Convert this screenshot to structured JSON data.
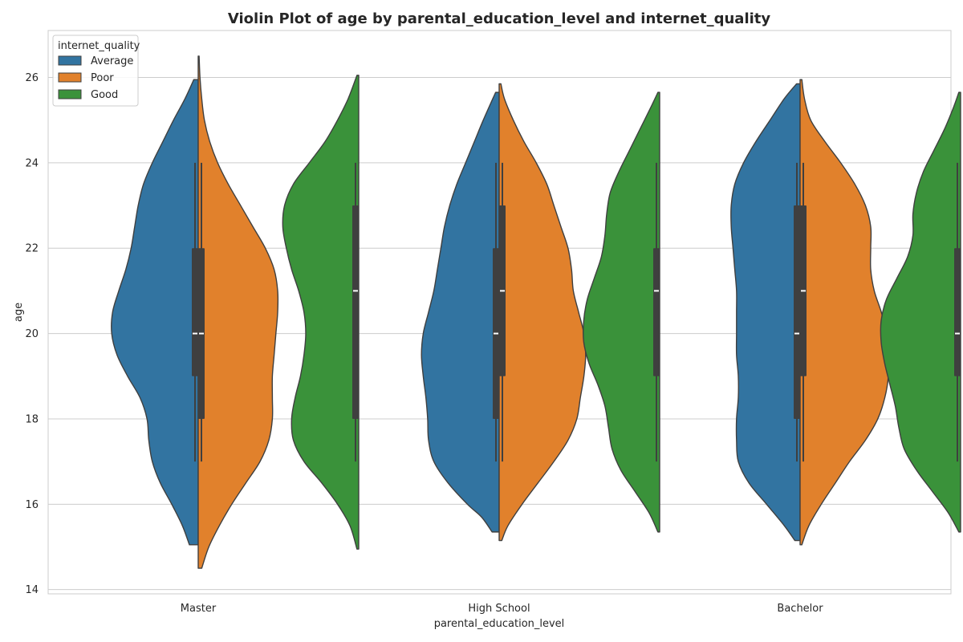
{
  "chart_data": {
    "type": "violin",
    "title": "Violin Plot of age by parental_education_level and internet_quality",
    "xlabel": "parental_education_level",
    "ylabel": "age",
    "ylim": [
      13.9,
      27.1
    ],
    "yticks": [
      14,
      16,
      18,
      20,
      22,
      24,
      26
    ],
    "grid": true,
    "legend": {
      "title": "internet_quality",
      "placement": "top-left",
      "entries": [
        {
          "name": "Average",
          "color": "#3274a1"
        },
        {
          "name": "Poor",
          "color": "#e1812c"
        },
        {
          "name": "Good",
          "color": "#3a923a"
        }
      ]
    },
    "categories": [
      "Master",
      "High School",
      "Bachelor"
    ],
    "series": [
      {
        "name": "Average",
        "color": "#3274a1",
        "side": "left",
        "violins": [
          {
            "category": "Master",
            "ymin": 15.05,
            "ymax": 25.95,
            "q1": 19,
            "median": 20,
            "q3": 22,
            "whisker_low": 17,
            "whisker_high": 24,
            "profile": [
              [
                15.05,
                0.1
              ],
              [
                15.5,
                0.18
              ],
              [
                16.0,
                0.3
              ],
              [
                16.5,
                0.43
              ],
              [
                17.0,
                0.52
              ],
              [
                17.5,
                0.56
              ],
              [
                18.0,
                0.58
              ],
              [
                18.5,
                0.66
              ],
              [
                19.0,
                0.8
              ],
              [
                19.5,
                0.92
              ],
              [
                20.0,
                0.98
              ],
              [
                20.5,
                0.97
              ],
              [
                21.0,
                0.9
              ],
              [
                21.5,
                0.82
              ],
              [
                22.0,
                0.76
              ],
              [
                22.5,
                0.72
              ],
              [
                23.0,
                0.68
              ],
              [
                23.5,
                0.62
              ],
              [
                24.0,
                0.52
              ],
              [
                24.5,
                0.4
              ],
              [
                25.0,
                0.28
              ],
              [
                25.5,
                0.15
              ],
              [
                25.95,
                0.05
              ]
            ]
          },
          {
            "category": "High School",
            "ymin": 15.35,
            "ymax": 25.65,
            "q1": 18,
            "median": 20,
            "q3": 22,
            "whisker_low": 17,
            "whisker_high": 24,
            "profile": [
              [
                15.35,
                0.08
              ],
              [
                15.7,
                0.2
              ],
              [
                16.0,
                0.36
              ],
              [
                16.5,
                0.58
              ],
              [
                17.0,
                0.74
              ],
              [
                17.5,
                0.8
              ],
              [
                18.0,
                0.81
              ],
              [
                18.5,
                0.83
              ],
              [
                19.0,
                0.86
              ],
              [
                19.5,
                0.88
              ],
              [
                20.0,
                0.86
              ],
              [
                20.5,
                0.8
              ],
              [
                21.0,
                0.74
              ],
              [
                21.5,
                0.7
              ],
              [
                22.0,
                0.66
              ],
              [
                22.5,
                0.62
              ],
              [
                23.0,
                0.56
              ],
              [
                23.5,
                0.48
              ],
              [
                24.0,
                0.38
              ],
              [
                24.5,
                0.28
              ],
              [
                25.0,
                0.18
              ],
              [
                25.65,
                0.04
              ]
            ]
          },
          {
            "category": "Bachelor",
            "ymin": 15.15,
            "ymax": 25.85,
            "q1": 18,
            "median": 20,
            "q3": 23,
            "whisker_low": 17,
            "whisker_high": 24,
            "profile": [
              [
                15.15,
                0.06
              ],
              [
                15.5,
                0.18
              ],
              [
                16.0,
                0.38
              ],
              [
                16.5,
                0.58
              ],
              [
                17.0,
                0.7
              ],
              [
                17.5,
                0.72
              ],
              [
                18.0,
                0.72
              ],
              [
                18.5,
                0.7
              ],
              [
                19.0,
                0.7
              ],
              [
                19.5,
                0.72
              ],
              [
                20.0,
                0.72
              ],
              [
                20.5,
                0.72
              ],
              [
                21.0,
                0.72
              ],
              [
                21.5,
                0.74
              ],
              [
                22.0,
                0.76
              ],
              [
                22.5,
                0.78
              ],
              [
                23.0,
                0.78
              ],
              [
                23.5,
                0.74
              ],
              [
                24.0,
                0.64
              ],
              [
                24.5,
                0.5
              ],
              [
                25.0,
                0.34
              ],
              [
                25.5,
                0.18
              ],
              [
                25.85,
                0.04
              ]
            ]
          }
        ]
      },
      {
        "name": "Poor",
        "color": "#e1812c",
        "side": "right",
        "violins": [
          {
            "category": "Master",
            "ymin": 14.5,
            "ymax": 26.5,
            "q1": 18,
            "median": 20,
            "q3": 22,
            "whisker_low": 17,
            "whisker_high": 24,
            "profile": [
              [
                14.5,
                0.04
              ],
              [
                15.0,
                0.12
              ],
              [
                15.5,
                0.24
              ],
              [
                16.0,
                0.38
              ],
              [
                16.5,
                0.54
              ],
              [
                17.0,
                0.7
              ],
              [
                17.5,
                0.8
              ],
              [
                18.0,
                0.84
              ],
              [
                18.5,
                0.84
              ],
              [
                19.0,
                0.84
              ],
              [
                19.5,
                0.86
              ],
              [
                20.0,
                0.88
              ],
              [
                20.5,
                0.9
              ],
              [
                21.0,
                0.9
              ],
              [
                21.5,
                0.86
              ],
              [
                22.0,
                0.76
              ],
              [
                22.5,
                0.62
              ],
              [
                23.0,
                0.48
              ],
              [
                23.5,
                0.34
              ],
              [
                24.0,
                0.22
              ],
              [
                24.5,
                0.13
              ],
              [
                25.0,
                0.07
              ],
              [
                25.5,
                0.04
              ],
              [
                26.0,
                0.02
              ],
              [
                26.5,
                0.01
              ]
            ]
          },
          {
            "category": "High School",
            "ymin": 15.15,
            "ymax": 25.85,
            "q1": 19,
            "median": 21,
            "q3": 23,
            "whisker_low": 17,
            "whisker_high": 24,
            "profile": [
              [
                15.15,
                0.03
              ],
              [
                15.5,
                0.1
              ],
              [
                16.0,
                0.26
              ],
              [
                16.5,
                0.44
              ],
              [
                17.0,
                0.62
              ],
              [
                17.5,
                0.78
              ],
              [
                18.0,
                0.88
              ],
              [
                18.5,
                0.92
              ],
              [
                19.0,
                0.96
              ],
              [
                19.5,
                0.98
              ],
              [
                20.0,
                0.96
              ],
              [
                20.5,
                0.9
              ],
              [
                21.0,
                0.84
              ],
              [
                21.5,
                0.82
              ],
              [
                22.0,
                0.78
              ],
              [
                22.5,
                0.7
              ],
              [
                23.0,
                0.62
              ],
              [
                23.5,
                0.54
              ],
              [
                24.0,
                0.42
              ],
              [
                24.5,
                0.28
              ],
              [
                25.0,
                0.16
              ],
              [
                25.5,
                0.06
              ],
              [
                25.85,
                0.02
              ]
            ]
          },
          {
            "category": "Bachelor",
            "ymin": 15.05,
            "ymax": 25.95,
            "q1": 19,
            "median": 21,
            "q3": 23,
            "whisker_low": 17,
            "whisker_high": 24,
            "profile": [
              [
                15.05,
                0.02
              ],
              [
                15.5,
                0.1
              ],
              [
                16.0,
                0.24
              ],
              [
                16.5,
                0.4
              ],
              [
                17.0,
                0.56
              ],
              [
                17.5,
                0.74
              ],
              [
                18.0,
                0.88
              ],
              [
                18.5,
                0.96
              ],
              [
                19.0,
                1.0
              ],
              [
                19.5,
                1.0
              ],
              [
                20.0,
                0.98
              ],
              [
                20.5,
                0.92
              ],
              [
                21.0,
                0.84
              ],
              [
                21.5,
                0.8
              ],
              [
                22.0,
                0.8
              ],
              [
                22.5,
                0.8
              ],
              [
                23.0,
                0.74
              ],
              [
                23.5,
                0.62
              ],
              [
                24.0,
                0.46
              ],
              [
                24.5,
                0.28
              ],
              [
                25.0,
                0.12
              ],
              [
                25.5,
                0.05
              ],
              [
                25.95,
                0.02
              ]
            ]
          }
        ]
      },
      {
        "name": "Good",
        "color": "#3a923a",
        "side": "left",
        "violins": [
          {
            "category": "Master",
            "ymin": 14.95,
            "ymax": 26.05,
            "q1": 18,
            "median": 21,
            "q3": 23,
            "whisker_low": 17,
            "whisker_high": 24,
            "profile": [
              [
                14.95,
                0.02
              ],
              [
                15.5,
                0.1
              ],
              [
                16.0,
                0.24
              ],
              [
                16.5,
                0.42
              ],
              [
                17.0,
                0.62
              ],
              [
                17.5,
                0.74
              ],
              [
                18.0,
                0.76
              ],
              [
                18.5,
                0.72
              ],
              [
                19.0,
                0.66
              ],
              [
                19.5,
                0.62
              ],
              [
                20.0,
                0.6
              ],
              [
                20.5,
                0.62
              ],
              [
                21.0,
                0.68
              ],
              [
                21.5,
                0.76
              ],
              [
                22.0,
                0.82
              ],
              [
                22.5,
                0.86
              ],
              [
                23.0,
                0.84
              ],
              [
                23.5,
                0.74
              ],
              [
                24.0,
                0.56
              ],
              [
                24.5,
                0.38
              ],
              [
                25.0,
                0.24
              ],
              [
                25.5,
                0.12
              ],
              [
                26.05,
                0.02
              ]
            ]
          },
          {
            "category": "High School",
            "ymin": 15.35,
            "ymax": 25.65,
            "q1": 19,
            "median": 21,
            "q3": 22,
            "whisker_low": 17,
            "whisker_high": 24,
            "profile": [
              [
                15.35,
                0.02
              ],
              [
                15.8,
                0.12
              ],
              [
                16.3,
                0.28
              ],
              [
                16.8,
                0.44
              ],
              [
                17.3,
                0.54
              ],
              [
                17.8,
                0.58
              ],
              [
                18.3,
                0.62
              ],
              [
                18.8,
                0.7
              ],
              [
                19.3,
                0.8
              ],
              [
                19.8,
                0.86
              ],
              [
                20.3,
                0.86
              ],
              [
                20.8,
                0.82
              ],
              [
                21.3,
                0.74
              ],
              [
                21.8,
                0.66
              ],
              [
                22.3,
                0.62
              ],
              [
                22.8,
                0.6
              ],
              [
                23.3,
                0.56
              ],
              [
                23.8,
                0.46
              ],
              [
                24.3,
                0.34
              ],
              [
                24.8,
                0.22
              ],
              [
                25.3,
                0.1
              ],
              [
                25.65,
                0.02
              ]
            ]
          },
          {
            "category": "Bachelor",
            "ymin": 15.35,
            "ymax": 25.65,
            "q1": 19,
            "median": 20,
            "q3": 22,
            "whisker_low": 17,
            "whisker_high": 24,
            "profile": [
              [
                15.35,
                0.02
              ],
              [
                15.8,
                0.14
              ],
              [
                16.3,
                0.32
              ],
              [
                16.8,
                0.5
              ],
              [
                17.3,
                0.64
              ],
              [
                17.8,
                0.7
              ],
              [
                18.3,
                0.74
              ],
              [
                18.8,
                0.8
              ],
              [
                19.3,
                0.86
              ],
              [
                19.8,
                0.9
              ],
              [
                20.3,
                0.9
              ],
              [
                20.8,
                0.84
              ],
              [
                21.3,
                0.72
              ],
              [
                21.8,
                0.6
              ],
              [
                22.3,
                0.54
              ],
              [
                22.8,
                0.54
              ],
              [
                23.3,
                0.5
              ],
              [
                23.8,
                0.42
              ],
              [
                24.3,
                0.3
              ],
              [
                24.8,
                0.18
              ],
              [
                25.3,
                0.08
              ],
              [
                25.65,
                0.02
              ]
            ]
          }
        ]
      }
    ]
  }
}
